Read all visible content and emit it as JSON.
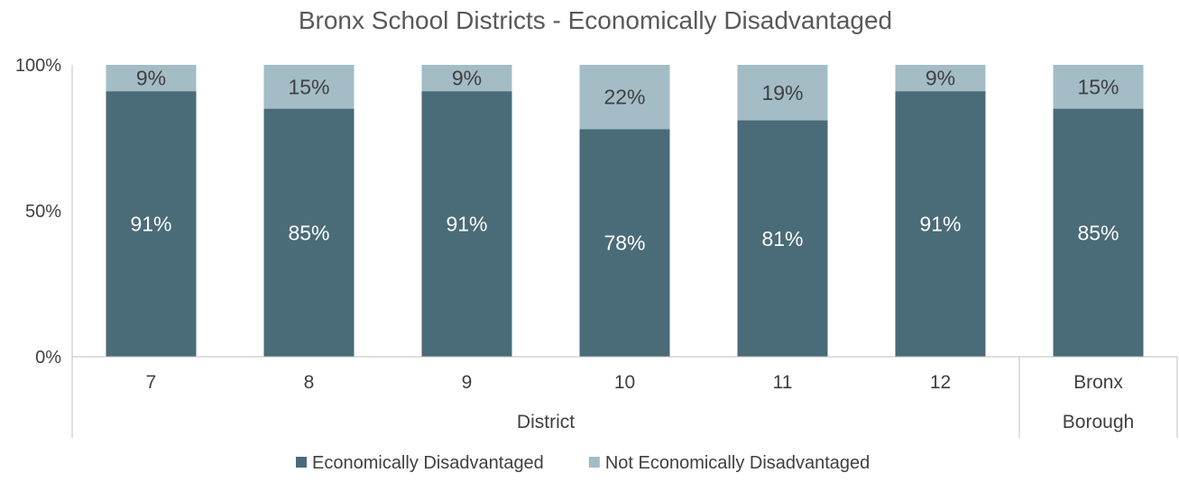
{
  "chart_data": {
    "type": "bar",
    "stacked": true,
    "percent_stacked": true,
    "title": "Bronx School Districts - Economically Disadvantaged",
    "xlabel": "",
    "ylabel": "",
    "ylim": [
      0,
      100
    ],
    "y_ticks": [
      "0%",
      "50%",
      "100%"
    ],
    "grid": false,
    "legend_position": "bottom",
    "categories": [
      "7",
      "8",
      "9",
      "10",
      "11",
      "12",
      "Bronx"
    ],
    "category_groups": [
      {
        "label": "District",
        "categories": [
          "7",
          "8",
          "9",
          "10",
          "11",
          "12"
        ]
      },
      {
        "label": "Borough",
        "categories": [
          "Bronx"
        ]
      }
    ],
    "series": [
      {
        "name": "Economically Disadvantaged",
        "color": "#4a6b78",
        "label_color": "#ffffff",
        "values": [
          91,
          85,
          91,
          78,
          81,
          91,
          85
        ],
        "labels": [
          "91%",
          "85%",
          "91%",
          "78%",
          "81%",
          "91%",
          "85%"
        ]
      },
      {
        "name": "Not Economically Disadvantaged",
        "color": "#a3bcc5",
        "label_color": "#404040",
        "values": [
          9,
          15,
          9,
          22,
          19,
          9,
          15
        ],
        "labels": [
          "9%",
          "15%",
          "9%",
          "22%",
          "19%",
          "9%",
          "15%"
        ]
      }
    ]
  }
}
